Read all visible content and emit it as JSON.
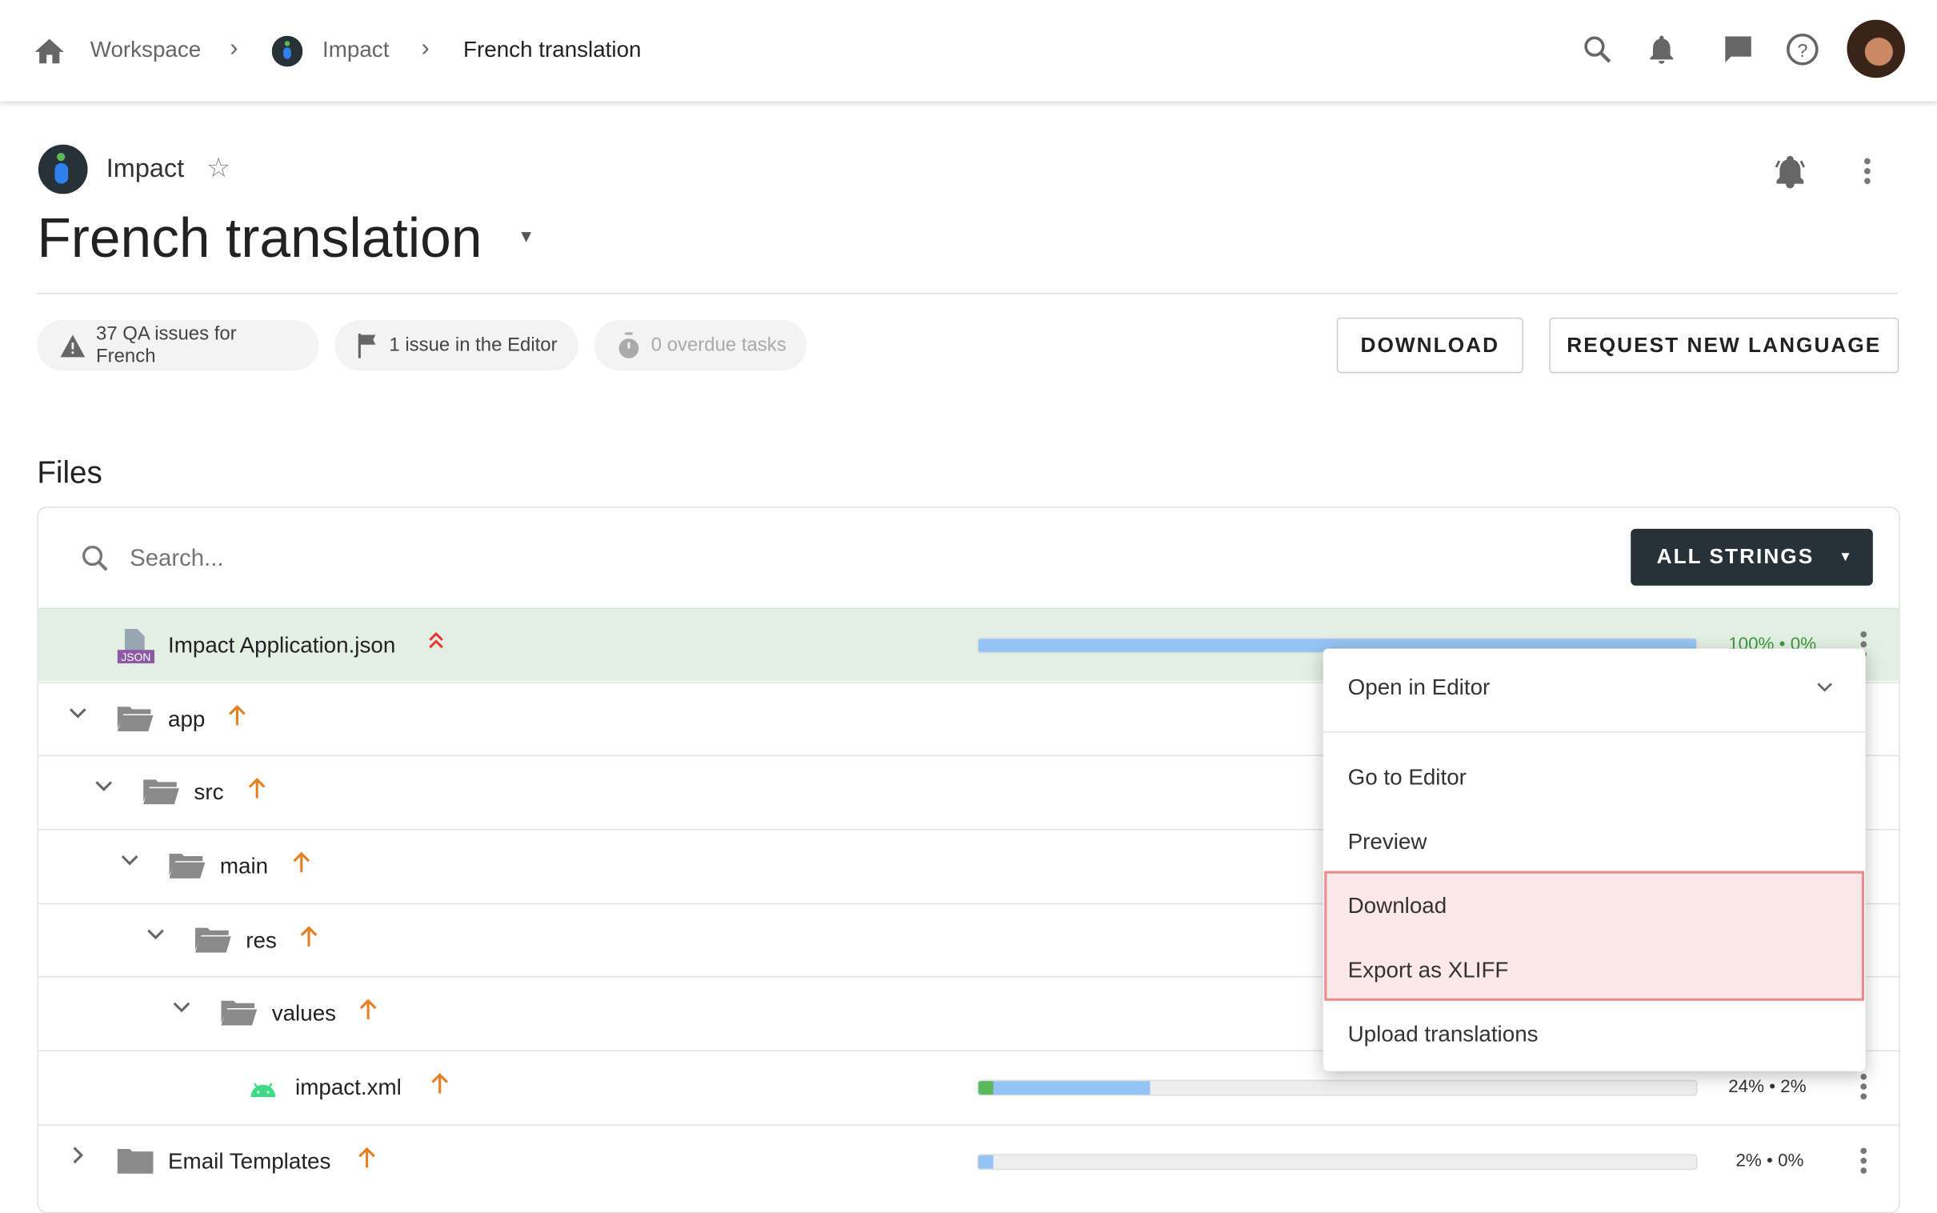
{
  "breadcrumb": {
    "items": [
      "Workspace",
      "Impact",
      "French translation"
    ]
  },
  "header": {
    "project": "Impact",
    "title": "French translation"
  },
  "chips": [
    {
      "icon": "warning-icon",
      "label": "37 QA issues for French"
    },
    {
      "icon": "flag-icon",
      "label": "1 issue in the Editor"
    },
    {
      "icon": "stopwatch-icon",
      "label": "0 overdue tasks"
    }
  ],
  "actions": {
    "download": "DOWNLOAD",
    "request": "REQUEST NEW LANGUAGE"
  },
  "files": {
    "heading": "Files",
    "search_placeholder": "Search...",
    "filter": "ALL STRINGS",
    "rows": [
      {
        "name": "Impact Application.json",
        "type": "json",
        "badge": "JSON",
        "priority": "high",
        "translated": 100,
        "approved": 0,
        "label": "100% • 0%",
        "selected": true
      },
      {
        "name": "app",
        "type": "folder",
        "expanded": true
      },
      {
        "name": "src",
        "type": "folder",
        "expanded": true
      },
      {
        "name": "main",
        "type": "folder",
        "expanded": true
      },
      {
        "name": "res",
        "type": "folder",
        "expanded": true
      },
      {
        "name": "values",
        "type": "folder",
        "expanded": true
      },
      {
        "name": "impact.xml",
        "type": "android",
        "translated": 24,
        "approved": 2,
        "label": "24% • 2%"
      },
      {
        "name": "Email Templates",
        "type": "folder",
        "expanded": false,
        "translated": 2,
        "approved": 0,
        "label": "2% • 0%"
      }
    ]
  },
  "context_menu": {
    "open_in_editor": "Open in Editor",
    "items": [
      "Go to Editor",
      "Preview",
      "Download",
      "Export as XLIFF",
      "Upload translations"
    ],
    "highlight_color": "#fde8e9"
  },
  "colors": {
    "accent_dark": "#263238",
    "translated": "#96c3f5",
    "approved": "#5cb85c",
    "priority": "#e53935",
    "upload_arrow": "#e67e22"
  }
}
